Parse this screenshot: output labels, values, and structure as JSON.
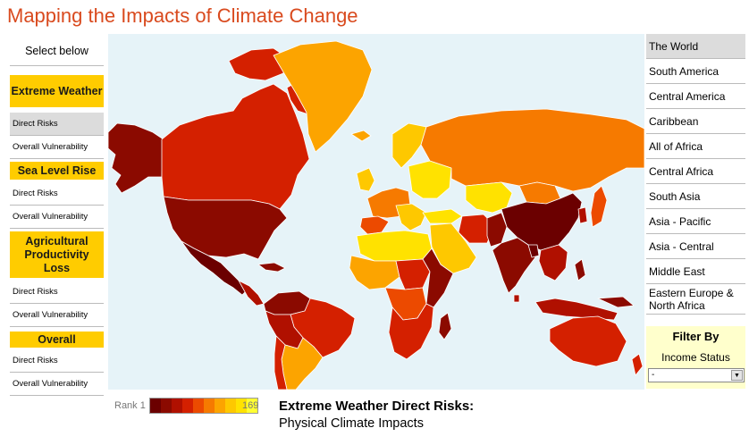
{
  "title": "Mapping the Impacts of Climate Change",
  "left_panel": {
    "select_label": "Select below",
    "categories": [
      {
        "label": "Extreme Weather",
        "items": [
          "Direct Risks",
          "Overall Vulnerability"
        ],
        "active": "Direct Risks"
      },
      {
        "label": "Sea Level Rise",
        "items": [
          "Direct Risks",
          "Overall Vulnerability"
        ]
      },
      {
        "label": "Agricultural Productivity Loss",
        "items": [
          "Direct Risks",
          "Overall Vulnerability"
        ]
      },
      {
        "label": "Overall",
        "items": [
          "Direct Risks",
          "Overall Vulnerability"
        ]
      }
    ]
  },
  "regions": [
    "The World",
    "South America",
    "Central America",
    "Caribbean",
    "All of Africa",
    "Central Africa",
    "South Asia",
    "Asia - Pacific",
    "Asia - Central",
    "Middle East",
    "Eastern Europe & North Africa"
  ],
  "selected_region": "The World",
  "filter": {
    "title": "Filter By",
    "subtitle": "Income Status",
    "selected": "-"
  },
  "legend": {
    "min_label": "Rank 1",
    "max_label": "169",
    "colors": [
      "#6b0000",
      "#8b0a00",
      "#b01000",
      "#d42000",
      "#ec4a00",
      "#f67a00",
      "#fca400",
      "#fec800",
      "#ffe200",
      "#ffff33"
    ]
  },
  "caption": {
    "title": "Extreme Weather Direct Risks:",
    "subtitle": "Physical Climate Impacts"
  },
  "map": {
    "ocean_color": "#e6f3f8",
    "border_color": "#ffffff"
  }
}
